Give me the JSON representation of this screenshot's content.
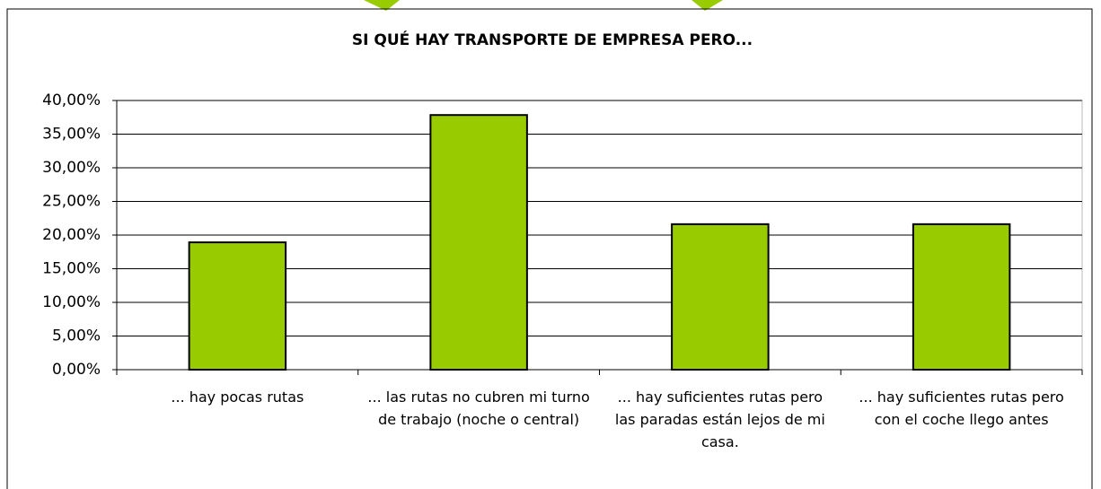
{
  "chart_data": {
    "type": "bar",
    "title": "SI QUÉ HAY TRANSPORTE DE EMPRESA PERO...",
    "categories": [
      "... hay pocas rutas",
      "... las rutas no cubren mi turno de trabajo (noche o central)",
      "... hay suficientes rutas pero las paradas están lejos de mi casa.",
      "... hay suficientes rutas pero con el coche llego antes"
    ],
    "values": [
      18.92,
      37.84,
      21.62,
      21.62
    ],
    "color": "#99cc00",
    "ylim": [
      0,
      40
    ],
    "yticks": [
      {
        "value": 0,
        "label": "0,00%"
      },
      {
        "value": 5,
        "label": "5,00%"
      },
      {
        "value": 10,
        "label": "10,00%"
      },
      {
        "value": 15,
        "label": "15,00%"
      },
      {
        "value": 20,
        "label": "20,00%"
      },
      {
        "value": 25,
        "label": "25,00%"
      },
      {
        "value": 30,
        "label": "30,00%"
      },
      {
        "value": 35,
        "label": "35,00%"
      },
      {
        "value": 40,
        "label": "40,00%"
      }
    ],
    "grid": true
  }
}
